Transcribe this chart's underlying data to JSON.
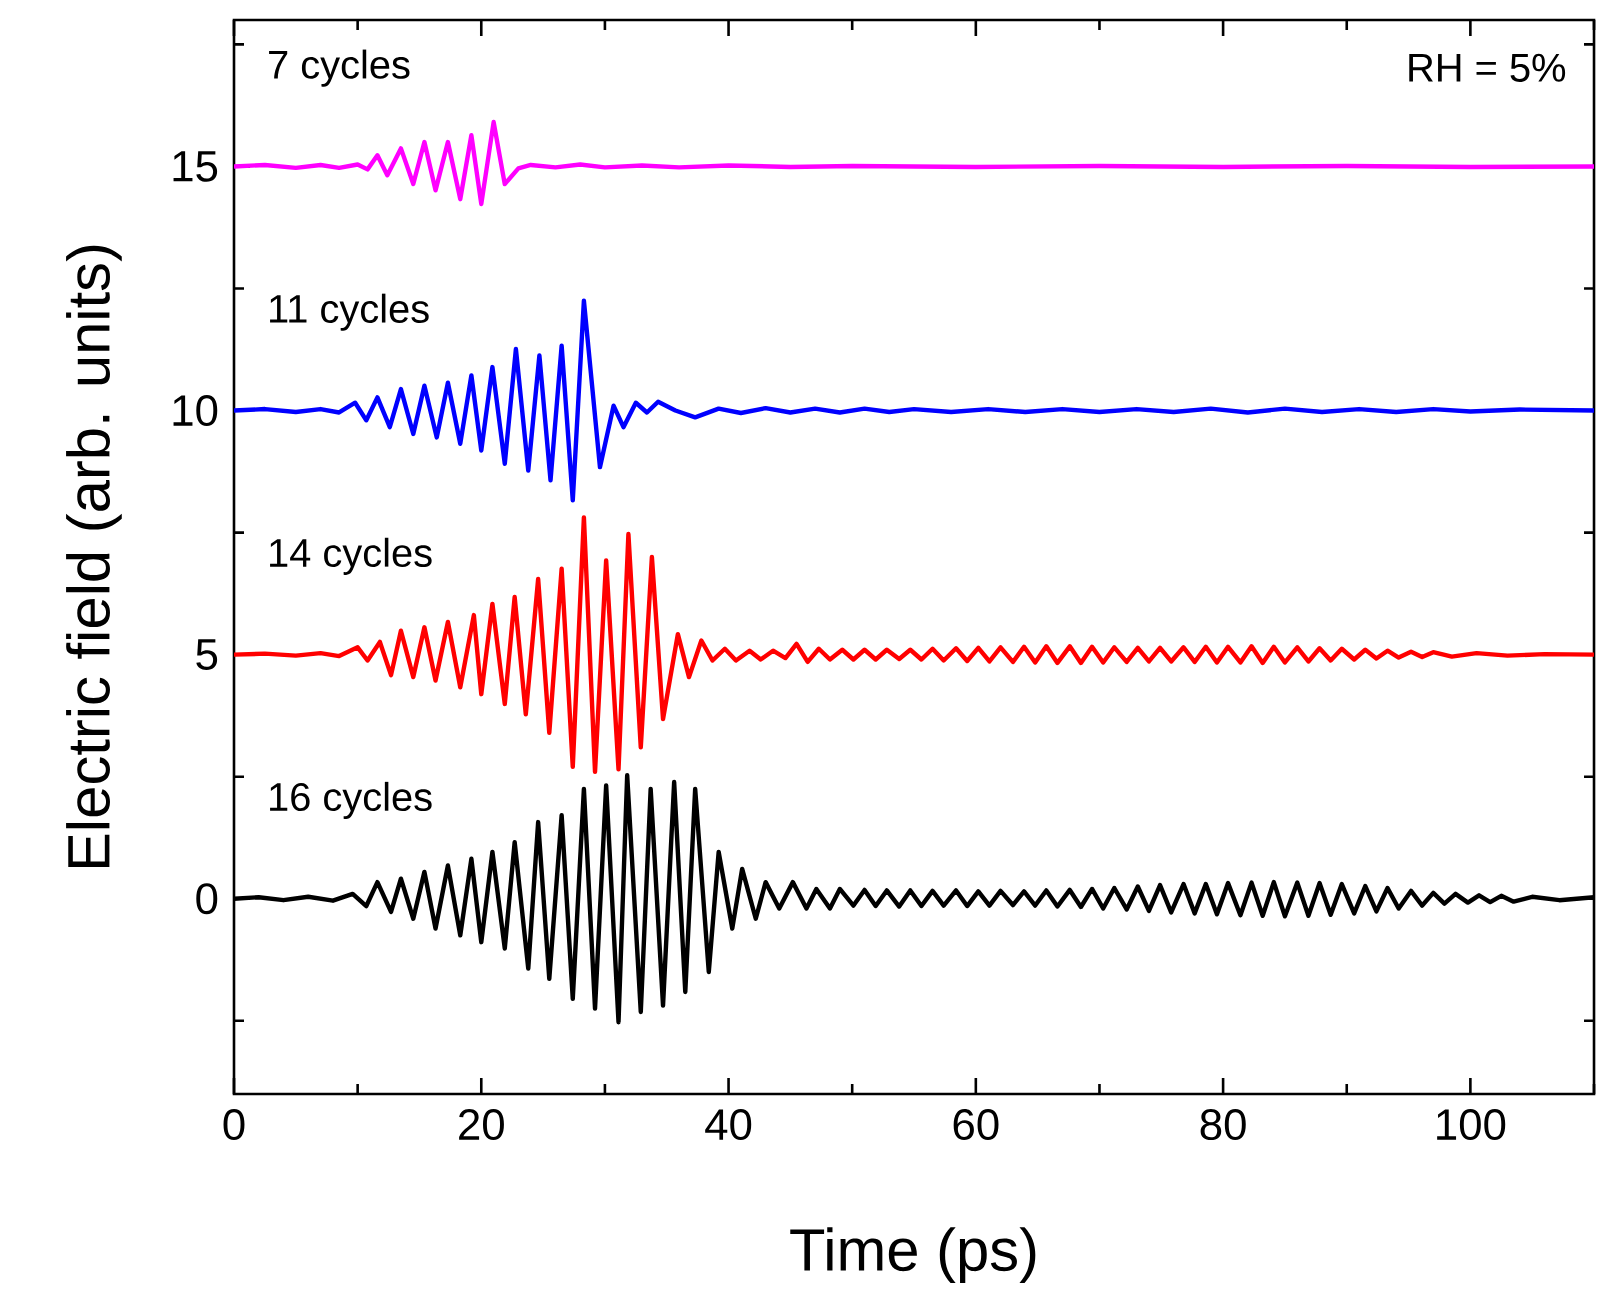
{
  "chart_data": {
    "type": "line",
    "xlabel": "Time (ps)",
    "ylabel": "Electric field (arb. units)",
    "xlim": [
      0,
      110
    ],
    "ylim": [
      -4,
      18
    ],
    "xticks": [
      0,
      {
        "value": 10,
        "label": null
      },
      20,
      {
        "value": 30,
        "label": null
      },
      40,
      {
        "value": 50,
        "label": null
      },
      60,
      {
        "value": 70,
        "label": null
      },
      80,
      {
        "value": 90,
        "label": null
      },
      100,
      {
        "value": 110,
        "label": null
      }
    ],
    "yticks": [
      {
        "value": -2.5,
        "label": null
      },
      0,
      {
        "value": 2.5,
        "label": null
      },
      5,
      {
        "value": 7.5,
        "label": null
      },
      10,
      {
        "value": 12.5,
        "label": null
      },
      15,
      {
        "value": 17.5,
        "label": null
      }
    ],
    "annotations": [
      "RH = 5%",
      "7 cycles",
      "11 cycles",
      "14 cycles",
      "16 cycles"
    ],
    "series": [
      {
        "color": "#ff00ff",
        "x": [
          0,
          2.5,
          5,
          7,
          8.5,
          10,
          10.8,
          11.6,
          12.4,
          13.5,
          14.5,
          15.4,
          16.3,
          17.3,
          18.3,
          19.2,
          20.0,
          21.0,
          21.9,
          23.0,
          24,
          26,
          28,
          30,
          33,
          36,
          40,
          45,
          50,
          60,
          70,
          80,
          90,
          100,
          110
        ],
        "values": [
          15,
          15.03,
          14.97,
          15.03,
          14.97,
          15.04,
          14.94,
          15.23,
          14.82,
          15.37,
          14.64,
          15.5,
          14.51,
          15.5,
          14.33,
          15.64,
          14.23,
          15.91,
          14.64,
          14.96,
          15.03,
          14.98,
          15.04,
          14.98,
          15.02,
          14.98,
          15.02,
          14.99,
          15.01,
          14.99,
          15.01,
          14.99,
          15.01,
          14.99,
          15.0
        ]
      },
      {
        "color": "#0000ff",
        "x": [
          0,
          2.5,
          5,
          7,
          8.5,
          9.8,
          10.7,
          11.6,
          12.6,
          13.5,
          14.5,
          15.4,
          16.4,
          17.3,
          18.3,
          19.2,
          20.0,
          20.9,
          21.9,
          22.8,
          23.8,
          24.7,
          25.6,
          26.5,
          27.4,
          28.3,
          29.6,
          30.7,
          31.5,
          32.5,
          33.4,
          34.3,
          35.7,
          37.3,
          39.2,
          41,
          43,
          45,
          47,
          49,
          51,
          53,
          55,
          58,
          61,
          64,
          67,
          70,
          73,
          76,
          79,
          82,
          85,
          88,
          91,
          94,
          97,
          100,
          104,
          110
        ],
        "values": [
          10,
          10.03,
          9.97,
          10.03,
          9.96,
          10.16,
          9.8,
          10.27,
          9.66,
          10.44,
          9.52,
          10.51,
          9.45,
          10.57,
          9.32,
          10.72,
          9.18,
          10.89,
          8.91,
          11.26,
          8.77,
          11.13,
          8.57,
          11.33,
          8.16,
          12.25,
          8.84,
          10.1,
          9.66,
          10.16,
          9.96,
          10.18,
          10.0,
          9.86,
          10.04,
          9.95,
          10.05,
          9.96,
          10.04,
          9.96,
          10.04,
          9.97,
          10.03,
          9.97,
          10.03,
          9.97,
          10.03,
          9.97,
          10.03,
          9.97,
          10.04,
          9.96,
          10.04,
          9.97,
          10.03,
          9.97,
          10.03,
          9.98,
          10.02,
          10.0
        ]
      },
      {
        "color": "#ff0000",
        "x": [
          0,
          2.5,
          5,
          7,
          8.5,
          10.0,
          10.8,
          11.8,
          12.7,
          13.5,
          14.5,
          15.4,
          16.3,
          17.3,
          18.3,
          19.4,
          20.0,
          20.9,
          21.9,
          22.7,
          23.6,
          24.6,
          25.5,
          26.5,
          27.4,
          28.3,
          29.2,
          30.1,
          31.1,
          31.9,
          32.9,
          33.8,
          34.7,
          35.9,
          36.8,
          37.8,
          38.7,
          39.7,
          40.6,
          41.7,
          42.6,
          43.6,
          44.6,
          45.5,
          46.4,
          47.3,
          48.2,
          49.2,
          50.1,
          51.0,
          51.9,
          52.8,
          53.8,
          54.7,
          55.6,
          56.5,
          57.4,
          58.4,
          59.3,
          60.2,
          61.1,
          62.0,
          63.0,
          63.9,
          64.8,
          65.7,
          66.6,
          67.6,
          68.5,
          69.4,
          70.3,
          71.2,
          72.2,
          73.1,
          74.0,
          74.9,
          75.8,
          76.8,
          77.7,
          78.6,
          79.5,
          80.4,
          81.4,
          82.3,
          83.2,
          84.1,
          85.0,
          86.0,
          86.9,
          87.8,
          88.7,
          89.6,
          90.6,
          91.5,
          92.4,
          93.3,
          94.2,
          95.2,
          96.1,
          97.0,
          98.5,
          100.5,
          103,
          106,
          110
        ],
        "values": [
          5,
          5.02,
          4.98,
          5.03,
          4.97,
          5.15,
          4.88,
          5.26,
          4.58,
          5.49,
          4.54,
          5.56,
          4.47,
          5.67,
          4.33,
          5.81,
          4.19,
          6.04,
          3.99,
          6.18,
          3.78,
          6.55,
          3.4,
          6.76,
          2.7,
          7.81,
          2.6,
          6.93,
          2.65,
          7.47,
          3.1,
          7.0,
          3.68,
          5.42,
          4.54,
          5.29,
          4.88,
          5.12,
          4.88,
          5.08,
          4.9,
          5.08,
          4.93,
          5.22,
          4.85,
          5.12,
          4.9,
          5.1,
          4.9,
          5.1,
          4.9,
          5.1,
          4.91,
          5.1,
          4.9,
          5.12,
          4.88,
          5.13,
          4.87,
          5.14,
          4.86,
          5.15,
          4.85,
          5.16,
          4.84,
          5.17,
          4.83,
          5.17,
          4.83,
          5.16,
          4.84,
          5.15,
          4.85,
          5.14,
          4.86,
          5.14,
          4.86,
          5.15,
          4.85,
          5.16,
          4.84,
          5.16,
          4.84,
          5.17,
          4.83,
          5.16,
          4.84,
          5.15,
          4.86,
          5.13,
          4.88,
          5.12,
          4.9,
          5.1,
          4.92,
          5.08,
          4.94,
          5.06,
          4.95,
          5.05,
          4.96,
          5.03,
          4.98,
          5.01,
          5.0
        ]
      },
      {
        "color": "#000000",
        "x": [
          0,
          2,
          4,
          6,
          8,
          9.6,
          10.7,
          11.6,
          12.7,
          13.5,
          14.5,
          15.4,
          16.3,
          17.3,
          18.3,
          19.2,
          20.0,
          20.9,
          21.9,
          22.7,
          23.8,
          24.6,
          25.5,
          26.5,
          27.4,
          28.3,
          29.2,
          30.1,
          31.1,
          31.8,
          32.9,
          33.7,
          34.7,
          35.6,
          36.5,
          37.3,
          38.4,
          39.2,
          40.3,
          41.1,
          42.2,
          43.0,
          44.1,
          45.2,
          46.3,
          47.1,
          48.2,
          49.0,
          50.1,
          51.0,
          51.9,
          52.8,
          53.8,
          54.7,
          55.6,
          56.5,
          57.4,
          58.4,
          59.3,
          60.2,
          61.1,
          62.0,
          63.0,
          63.9,
          64.8,
          65.7,
          66.6,
          67.6,
          68.5,
          69.4,
          70.3,
          71.2,
          72.2,
          73.1,
          74.0,
          74.9,
          75.8,
          76.8,
          77.7,
          78.6,
          79.5,
          80.4,
          81.4,
          82.3,
          83.2,
          84.1,
          85.0,
          86.0,
          86.9,
          87.8,
          88.7,
          89.6,
          90.6,
          91.5,
          92.4,
          93.3,
          94.2,
          95.2,
          96.1,
          97.0,
          97.9,
          98.8,
          99.8,
          100.7,
          101.6,
          102.5,
          103.5,
          105,
          107.2,
          110
        ],
        "values": [
          0,
          0.03,
          -0.03,
          0.04,
          -0.04,
          0.1,
          -0.15,
          0.34,
          -0.27,
          0.41,
          -0.41,
          0.55,
          -0.61,
          0.68,
          -0.75,
          0.82,
          -0.89,
          0.96,
          -1.02,
          1.16,
          -1.43,
          1.57,
          -1.64,
          1.71,
          -2.05,
          2.25,
          -2.25,
          2.32,
          -2.53,
          2.53,
          -2.32,
          2.25,
          -2.19,
          2.39,
          -1.91,
          2.25,
          -1.5,
          0.96,
          -0.61,
          0.61,
          -0.41,
          0.34,
          -0.2,
          0.34,
          -0.2,
          0.2,
          -0.2,
          0.2,
          -0.14,
          0.18,
          -0.15,
          0.17,
          -0.16,
          0.17,
          -0.15,
          0.16,
          -0.14,
          0.17,
          -0.15,
          0.15,
          -0.14,
          0.16,
          -0.13,
          0.15,
          -0.14,
          0.17,
          -0.16,
          0.18,
          -0.17,
          0.2,
          -0.2,
          0.22,
          -0.22,
          0.25,
          -0.25,
          0.28,
          -0.28,
          0.3,
          -0.3,
          0.3,
          -0.32,
          0.32,
          -0.34,
          0.33,
          -0.35,
          0.34,
          -0.36,
          0.33,
          -0.35,
          0.32,
          -0.33,
          0.3,
          -0.3,
          0.26,
          -0.26,
          0.22,
          -0.2,
          0.16,
          -0.14,
          0.12,
          -0.1,
          0.1,
          -0.08,
          0.07,
          -0.07,
          0.06,
          -0.06,
          0.04,
          -0.03,
          0.03
        ]
      }
    ]
  }
}
